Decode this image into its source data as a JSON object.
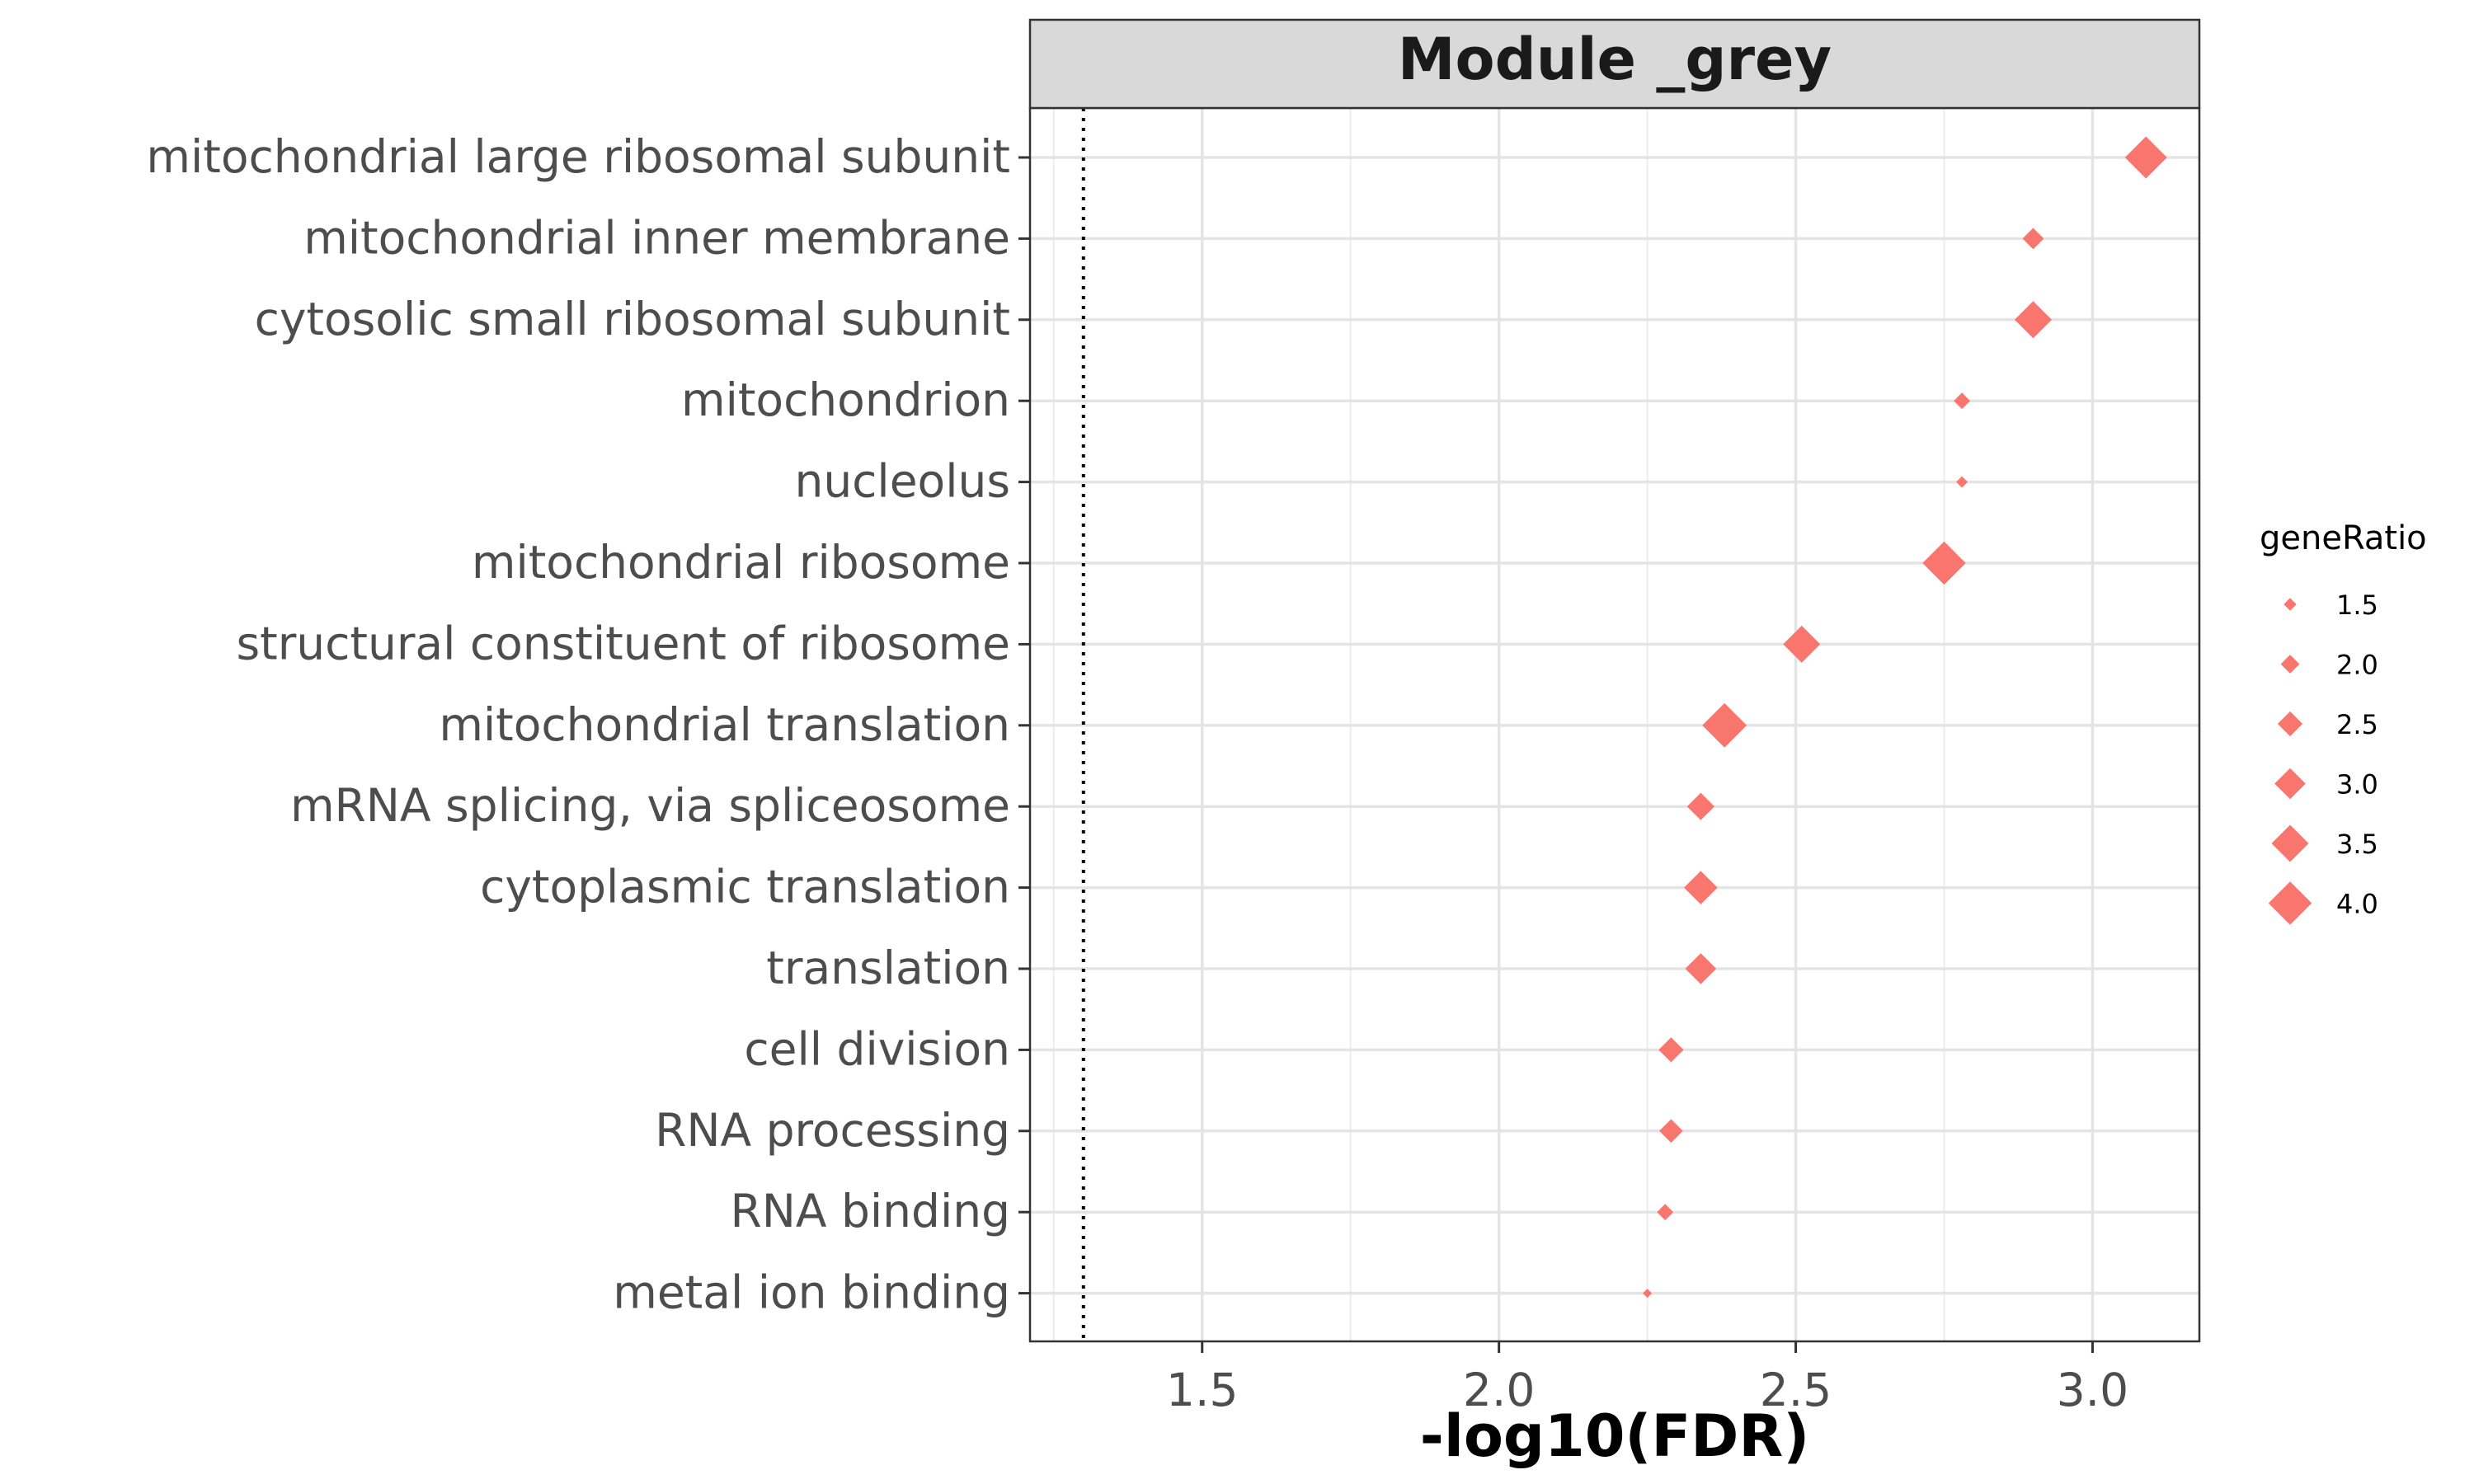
{
  "chart_data": {
    "type": "scatter",
    "facet_title": "Module _grey",
    "xlabel": "-log10(FDR)",
    "ylabel": "",
    "xlim": [
      1.21,
      3.18
    ],
    "x_ticks": [
      1.5,
      2.0,
      2.5,
      3.0
    ],
    "x_tick_labels": [
      "1.5",
      "2.0",
      "2.5",
      "3.0"
    ],
    "reference_line_x": 1.3,
    "grid": true,
    "marker": "diamond",
    "color": "#F8766D",
    "categories": [
      "mitochondrial large ribosomal subunit",
      "mitochondrial inner membrane",
      "cytosolic small ribosomal subunit",
      "mitochondrion",
      "nucleolus",
      "mitochondrial ribosome",
      "structural constituent of ribosome",
      "mitochondrial translation",
      "mRNA splicing, via spliceosome",
      "cytoplasmic translation",
      "translation",
      "cell division",
      "RNA processing",
      "RNA binding",
      "metal ion binding"
    ],
    "points": [
      {
        "term": "mitochondrial large ribosomal subunit",
        "x": 3.09,
        "geneRatio": 3.9
      },
      {
        "term": "mitochondrial inner membrane",
        "x": 2.9,
        "geneRatio": 2.2
      },
      {
        "term": "cytosolic small ribosomal subunit",
        "x": 2.9,
        "geneRatio": 3.5
      },
      {
        "term": "mitochondrion",
        "x": 2.78,
        "geneRatio": 1.8
      },
      {
        "term": "nucleolus",
        "x": 2.78,
        "geneRatio": 1.4
      },
      {
        "term": "mitochondrial ribosome",
        "x": 2.75,
        "geneRatio": 4.0
      },
      {
        "term": "structural constituent of ribosome",
        "x": 2.51,
        "geneRatio": 3.5
      },
      {
        "term": "mitochondrial translation",
        "x": 2.38,
        "geneRatio": 4.1
      },
      {
        "term": "mRNA splicing, via spliceosome",
        "x": 2.34,
        "geneRatio": 2.7
      },
      {
        "term": "cytoplasmic translation",
        "x": 2.34,
        "geneRatio": 3.2
      },
      {
        "term": "translation",
        "x": 2.34,
        "geneRatio": 3.0
      },
      {
        "term": "cell division",
        "x": 2.29,
        "geneRatio": 2.5
      },
      {
        "term": "RNA processing",
        "x": 2.29,
        "geneRatio": 2.4
      },
      {
        "term": "RNA binding",
        "x": 2.28,
        "geneRatio": 1.8
      },
      {
        "term": "metal ion binding",
        "x": 2.25,
        "geneRatio": 1.2
      }
    ],
    "legend": {
      "title": "geneRatio",
      "position": "right",
      "values": [
        1.5,
        2.0,
        2.5,
        3.0,
        3.5,
        4.0
      ],
      "labels": [
        "1.5",
        "2.0",
        "2.5",
        "3.0",
        "3.5",
        "4.0"
      ]
    }
  }
}
